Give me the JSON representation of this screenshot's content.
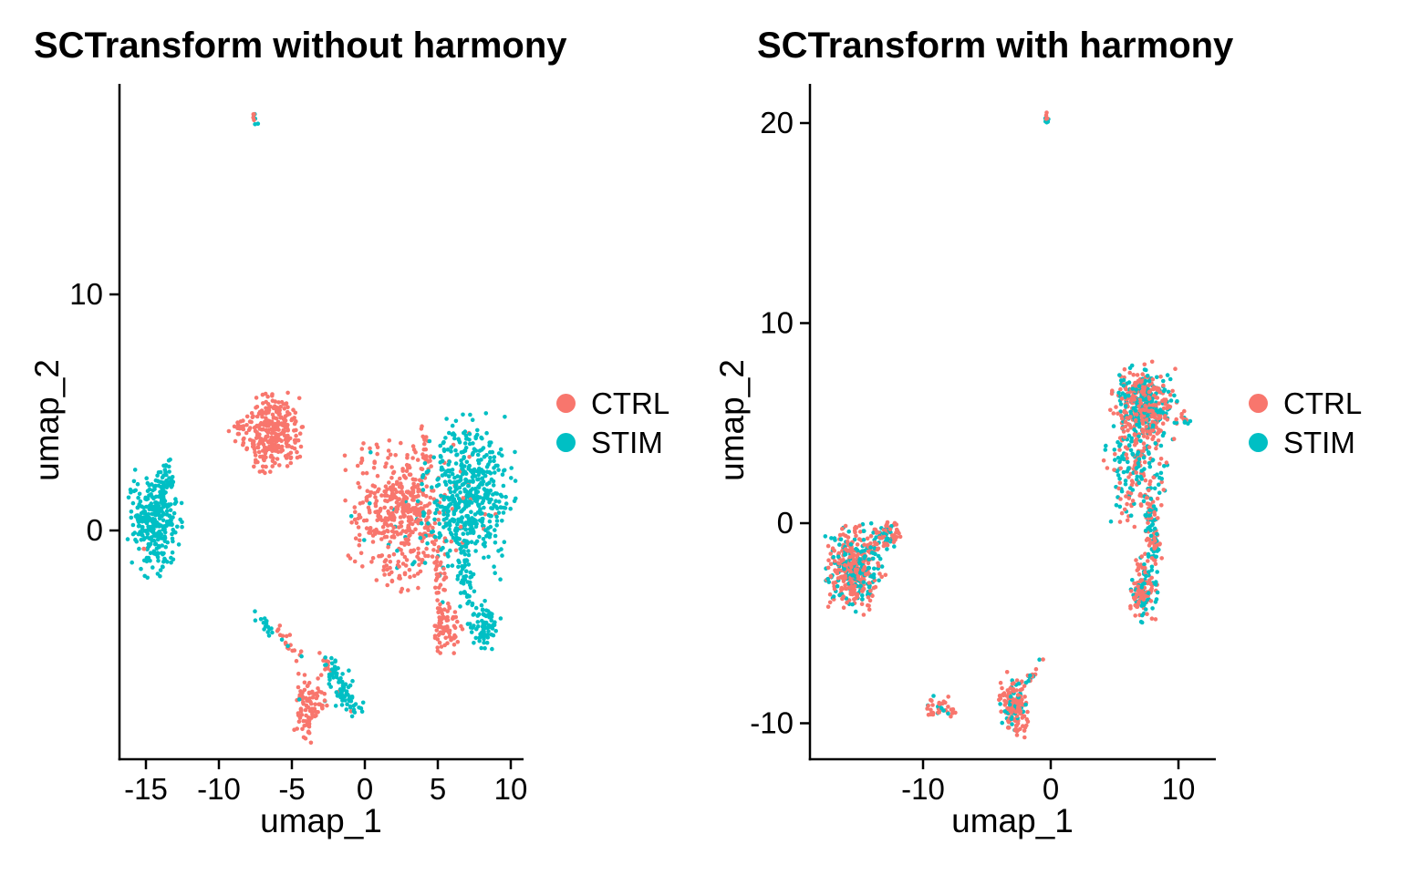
{
  "figure": {
    "background": "#FFFFFF"
  },
  "colors": {
    "ctrl": "#F8766D",
    "stim": "#00BFC4",
    "axis": "#000000",
    "text": "#000000"
  },
  "legend": {
    "items": [
      {
        "id": "ctrl",
        "label": "CTRL",
        "color": "#F8766D"
      },
      {
        "id": "stim",
        "label": "STIM",
        "color": "#00BFC4"
      }
    ]
  },
  "chart_data": [
    {
      "type": "scatter",
      "title": "SCTransform without harmony",
      "xlabel": "umap_1",
      "ylabel": "umap_2",
      "xlim": [
        -16.8,
        10.9
      ],
      "ylim": [
        -9.7,
        18.9
      ],
      "x_ticks": [
        -15,
        -10,
        -5,
        0,
        5,
        10
      ],
      "y_ticks": [
        0,
        10
      ],
      "grid": false,
      "legend_position": "right",
      "series_names": [
        "CTRL",
        "STIM"
      ],
      "point_radius_px": 2.3,
      "clusters": [
        {
          "name": "stim-left-tail",
          "type": "streak",
          "x1": -13.3,
          "y1": 3.0,
          "x2": -13.9,
          "y2": 1.1,
          "jitter": 0.22,
          "n": 42,
          "ctrl_frac": 0
        },
        {
          "name": "stim-left-main",
          "type": "blob",
          "cx": -14.4,
          "cy": 0.3,
          "sx": 0.82,
          "sy": 1.0,
          "n": 310,
          "ctrl_frac": 0
        },
        {
          "name": "ctrl-left-outlier",
          "type": "blob",
          "cx": -15.1,
          "cy": -0.75,
          "sx": 0.05,
          "sy": 0.05,
          "n": 2,
          "ctrl_frac": 1
        },
        {
          "name": "ctrl-upper-satellite",
          "type": "blob",
          "cx": -8.5,
          "cy": 4.35,
          "sx": 0.38,
          "sy": 0.28,
          "n": 22,
          "ctrl_frac": 1
        },
        {
          "name": "ctrl-upper-bridge",
          "type": "streak",
          "x1": -7.7,
          "y1": 4.3,
          "x2": -7.0,
          "y2": 4.2,
          "jitter": 0.18,
          "n": 8,
          "ctrl_frac": 1
        },
        {
          "name": "ctrl-upper-main",
          "type": "blob",
          "cx": -6.3,
          "cy": 4.1,
          "sx": 0.9,
          "sy": 0.78,
          "n": 280,
          "ctrl_frac": 1
        },
        {
          "name": "ctrl-central-main",
          "type": "blob",
          "cx": 2.5,
          "cy": 0.6,
          "sx": 1.7,
          "sy": 1.4,
          "n": 480,
          "ctrl_frac": 0.96
        },
        {
          "name": "ctrl-central-top-streak",
          "type": "streak",
          "x1": 4.05,
          "y1": 4.2,
          "x2": 4.3,
          "y2": 2.4,
          "jitter": 0.14,
          "n": 22,
          "ctrl_frac": 1
        },
        {
          "name": "stim-central-main",
          "type": "blob",
          "cx": 7.0,
          "cy": 1.4,
          "sx": 1.45,
          "sy": 1.55,
          "n": 520,
          "ctrl_frac": 0.025
        },
        {
          "name": "ctrl-tail-streak",
          "type": "streak",
          "x1": 4.8,
          "y1": -0.8,
          "x2": 5.6,
          "y2": -4.0,
          "jitter": 0.27,
          "n": 50,
          "ctrl_frac": 0.96
        },
        {
          "name": "ctrl-tail-blob",
          "type": "blob",
          "cx": 5.7,
          "cy": -4.3,
          "sx": 0.5,
          "sy": 0.45,
          "n": 60,
          "ctrl_frac": 1
        },
        {
          "name": "stim-mid-strip",
          "type": "streak",
          "x1": 6.5,
          "y1": -0.5,
          "x2": 7.1,
          "y2": -3.0,
          "jitter": 0.3,
          "n": 45,
          "ctrl_frac": 0
        },
        {
          "name": "stim-bottom-blob",
          "type": "blob",
          "cx": 8.1,
          "cy": -4.0,
          "sx": 0.55,
          "sy": 0.5,
          "n": 75,
          "ctrl_frac": 0.015
        },
        {
          "name": "mixed-streak-a",
          "type": "streak",
          "x1": -7.6,
          "y1": -3.6,
          "x2": -6.4,
          "y2": -4.2,
          "jitter": 0.13,
          "n": 15,
          "ctrl_frac": 0.1
        },
        {
          "name": "ctrl-streak-b",
          "type": "streak",
          "x1": -6.1,
          "y1": -4.2,
          "x2": -4.5,
          "y2": -5.4,
          "jitter": 0.16,
          "n": 20,
          "ctrl_frac": 0.85
        },
        {
          "name": "ctrl-streak-c",
          "type": "streak",
          "x1": -3.0,
          "y1": -5.2,
          "x2": -2.4,
          "y2": -5.9,
          "jitter": 0.14,
          "n": 12,
          "ctrl_frac": 0.9
        },
        {
          "name": "stim-staircase",
          "type": "streak",
          "x1": -2.4,
          "y1": -5.6,
          "x2": -0.6,
          "y2": -7.8,
          "jitter": 0.33,
          "n": 80,
          "ctrl_frac": 0.03
        },
        {
          "name": "ctrl-bottom-blob",
          "type": "blob",
          "cx": -3.8,
          "cy": -7.5,
          "sx": 0.55,
          "sy": 0.65,
          "n": 100,
          "ctrl_frac": 0.97
        },
        {
          "name": "top-dot-stim",
          "type": "blob",
          "cx": -7.55,
          "cy": 17.4,
          "sx": 0.12,
          "sy": 0.14,
          "n": 5,
          "ctrl_frac": 0
        },
        {
          "name": "top-dot-ctrl",
          "type": "blob",
          "cx": -7.6,
          "cy": 17.55,
          "sx": 0.08,
          "sy": 0.1,
          "n": 4,
          "ctrl_frac": 1
        }
      ]
    },
    {
      "type": "scatter",
      "title": "SCTransform with harmony",
      "xlabel": "umap_1",
      "ylabel": "umap_2",
      "xlim": [
        -18.8,
        12.9
      ],
      "ylim": [
        -11.8,
        21.9
      ],
      "x_ticks": [
        -10,
        0,
        10
      ],
      "y_ticks": [
        -10,
        0,
        10,
        20
      ],
      "grid": false,
      "legend_position": "right",
      "series_names": [
        "CTRL",
        "STIM"
      ],
      "point_radius_px": 2.3,
      "clusters": [
        {
          "name": "left-main-mixed",
          "type": "blob",
          "cx": -15.3,
          "cy": -2.3,
          "sx": 1.05,
          "sy": 1.0,
          "n": 430,
          "ctrl_frac": 0.63
        },
        {
          "name": "left-satellite",
          "type": "blob",
          "cx": -12.7,
          "cy": -0.55,
          "sx": 0.45,
          "sy": 0.33,
          "n": 60,
          "ctrl_frac": 0.62
        },
        {
          "name": "left-bridge",
          "type": "streak",
          "x1": -14.0,
          "y1": -1.2,
          "x2": -13.1,
          "y2": -0.7,
          "jitter": 0.15,
          "n": 12,
          "ctrl_frac": 0.4
        },
        {
          "name": "right-main-top",
          "type": "blob",
          "cx": 7.3,
          "cy": 6.0,
          "sx": 1.15,
          "sy": 0.95,
          "n": 460,
          "ctrl_frac": 0.56
        },
        {
          "name": "right-main-mid",
          "type": "blob",
          "cx": 6.7,
          "cy": 2.7,
          "sx": 1.2,
          "sy": 1.3,
          "n": 215,
          "ctrl_frac": 0.55
        },
        {
          "name": "right-satellite",
          "type": "blob",
          "cx": 10.4,
          "cy": 5.2,
          "sx": 0.3,
          "sy": 0.22,
          "n": 13,
          "ctrl_frac": 0.55
        },
        {
          "name": "right-tail-strip",
          "type": "streak",
          "x1": 7.8,
          "y1": 1.0,
          "x2": 8.1,
          "y2": -2.0,
          "jitter": 0.28,
          "n": 90,
          "ctrl_frac": 0.5
        },
        {
          "name": "right-bottom-blob",
          "type": "blob",
          "cx": 7.2,
          "cy": -3.3,
          "sx": 0.55,
          "sy": 0.78,
          "n": 135,
          "ctrl_frac": 0.55
        },
        {
          "name": "bottom-small",
          "type": "blob",
          "cx": -8.6,
          "cy": -9.3,
          "sx": 0.55,
          "sy": 0.3,
          "n": 42,
          "ctrl_frac": 0.74
        },
        {
          "name": "bottom-mid-blob",
          "type": "blob",
          "cx": -2.8,
          "cy": -9.1,
          "sx": 0.55,
          "sy": 0.75,
          "n": 155,
          "ctrl_frac": 0.76
        },
        {
          "name": "bottom-diag-streak",
          "type": "streak",
          "x1": -1.9,
          "y1": -8.0,
          "x2": -0.4,
          "y2": -6.6,
          "jitter": 0.12,
          "n": 14,
          "ctrl_frac": 0.6
        },
        {
          "name": "top-dot-stim",
          "type": "blob",
          "cx": -0.25,
          "cy": 20.2,
          "sx": 0.1,
          "sy": 0.12,
          "n": 5,
          "ctrl_frac": 0
        },
        {
          "name": "top-dot-ctrl",
          "type": "blob",
          "cx": -0.3,
          "cy": 20.35,
          "sx": 0.07,
          "sy": 0.09,
          "n": 4,
          "ctrl_frac": 1
        }
      ]
    }
  ]
}
